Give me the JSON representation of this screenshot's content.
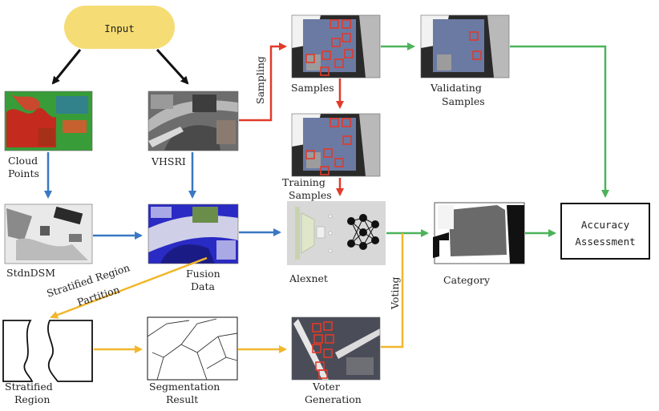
{
  "nodes": {
    "input": "Input",
    "cloud_points": [
      "Cloud",
      "Points"
    ],
    "vhsri": "VHSRI",
    "stdndsm": "StdnDSM",
    "fusion_data": [
      "Fusion",
      "Data"
    ],
    "samples": "Samples",
    "validating_samples": [
      "Validating",
      "Samples"
    ],
    "training_samples": [
      "Training",
      "Samples"
    ],
    "alexnet": "Alexnet",
    "category": "Category",
    "accuracy_assessment": [
      "Accuracy",
      "Assessment"
    ],
    "stratified_region": [
      "Stratified",
      "Region"
    ],
    "segmentation_result": [
      "Segmentation",
      "Result"
    ],
    "voter_generation": [
      "Voter",
      "Generation"
    ]
  },
  "edges": {
    "sampling": "Sampling",
    "stratified_region_partition": [
      "Stratified Region",
      "Partition"
    ],
    "voting": "Voting"
  },
  "colors": {
    "black": "#111111",
    "red": "#e23a2a",
    "green": "#4cb35a",
    "blue": "#3a78c2",
    "yellow": "#f1b72c",
    "input_fill": "#f6dc74"
  }
}
